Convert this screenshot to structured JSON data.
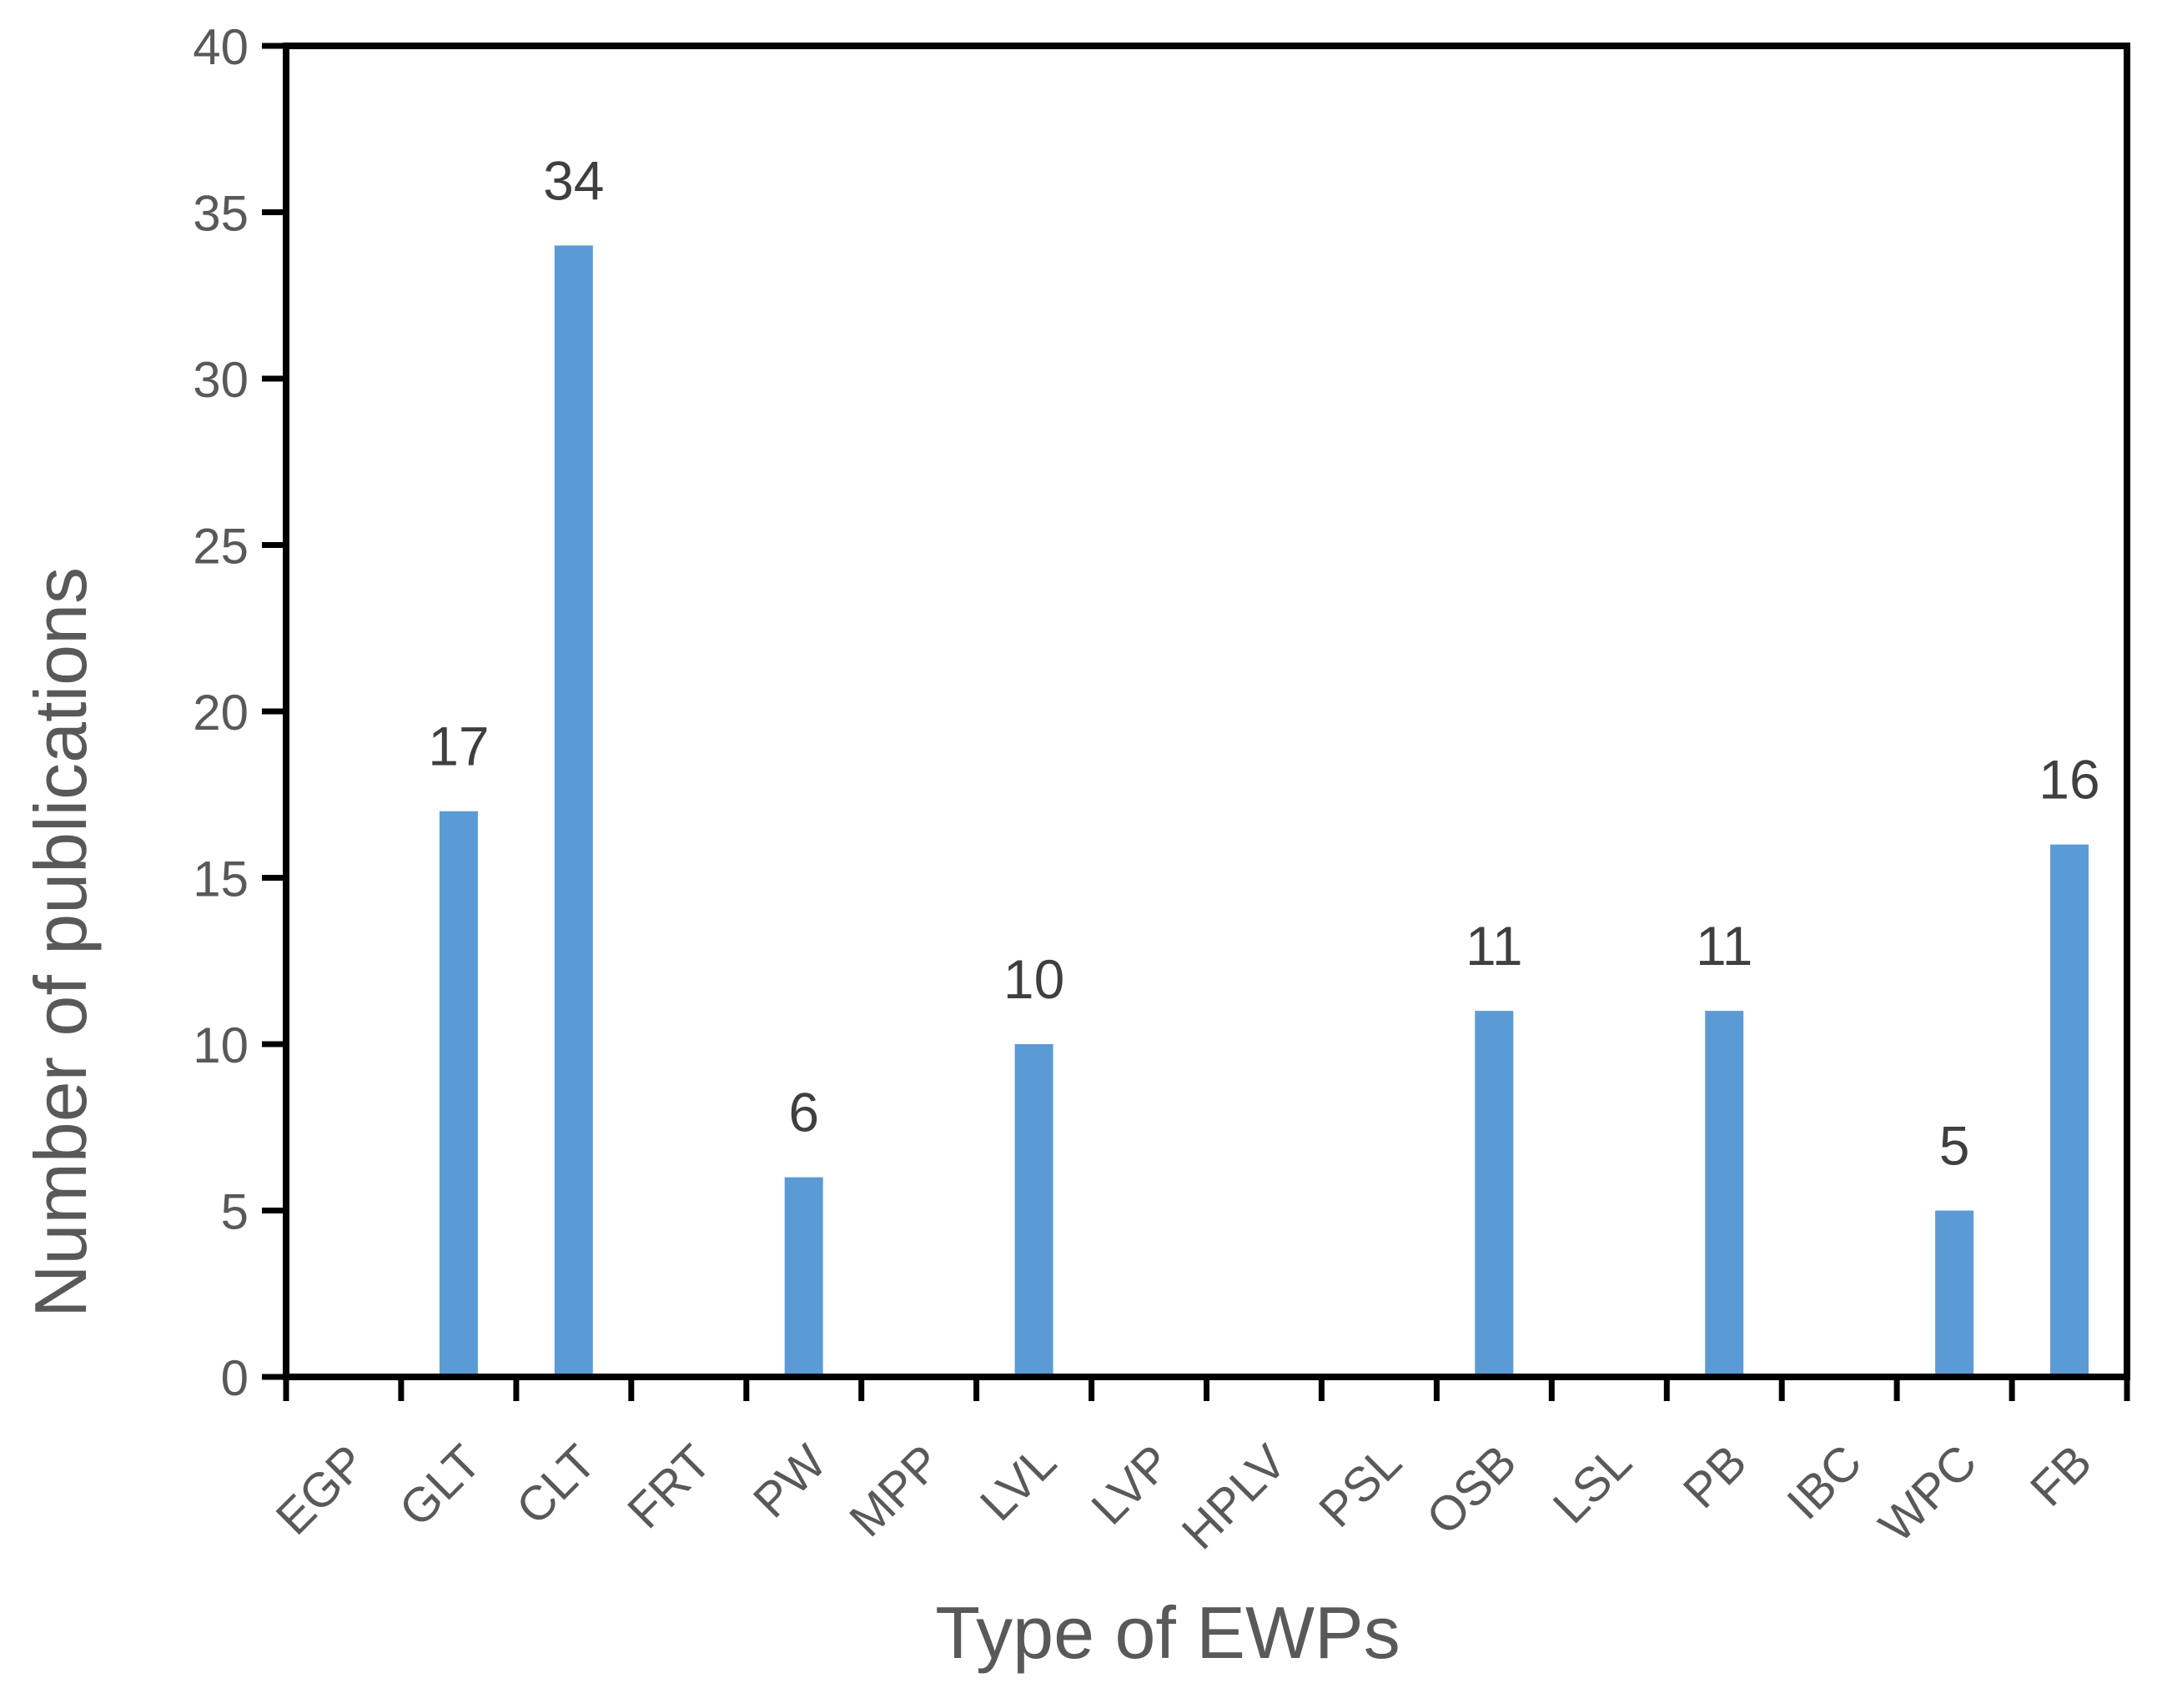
{
  "chart_data": {
    "type": "bar",
    "title": "",
    "categories": [
      "EGP",
      "GLT",
      "CLT",
      "FRT",
      "PW",
      "MPP",
      "LVL",
      "LVP",
      "HPLV",
      "PSL",
      "OSB",
      "LSL",
      "PB",
      "IBC",
      "WPC",
      "FB"
    ],
    "values": [
      0,
      17,
      34,
      0,
      6,
      0,
      10,
      0,
      0,
      0,
      11,
      0,
      11,
      0,
      5,
      16
    ],
    "shown_value_labels": [
      "17",
      "34",
      "6",
      "10",
      "11",
      "11",
      "5",
      "16"
    ],
    "xlabel": "Type of EWPs",
    "ylabel": "Number of publications",
    "ylim": [
      0,
      40
    ],
    "yticks": [
      0,
      5,
      10,
      15,
      20,
      25,
      30,
      35,
      40
    ],
    "grid": false,
    "legend": false,
    "colors": {
      "bar": "#5B9BD5",
      "axis_line": "#000000",
      "tick_label": "#595959",
      "axis_title": "#595959",
      "value_label": "#3F3F3F"
    }
  }
}
